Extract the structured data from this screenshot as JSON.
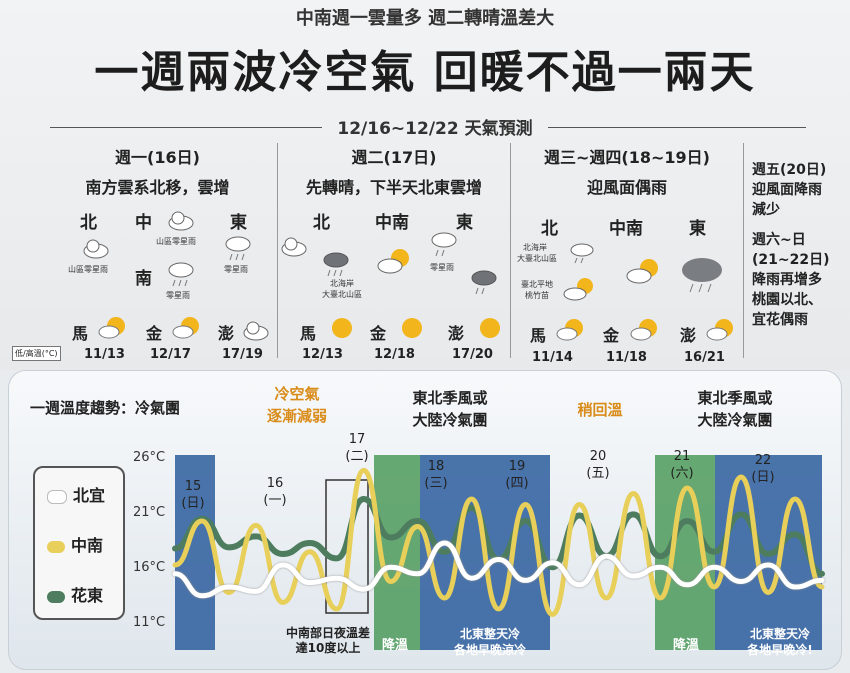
{
  "header": {
    "subtitle": "中南週一雲量多 週二轉晴溫差大",
    "title": "一週兩波冷空氣 回暖不過一兩天",
    "period": "12/16~12/22 天氣預測"
  },
  "forecast": {
    "mon": {
      "day": "週一(16日)",
      "desc": "南方雲系北移，雲增",
      "north": "北",
      "central": "中",
      "east": "東",
      "south": "南",
      "north_note": "山區零星雨",
      "central_note": "山區零星雨",
      "east_note": "零星雨",
      "south_note": "零星雨"
    },
    "tue": {
      "day": "週二(17日)",
      "desc": "先轉晴，下半天北東雲增",
      "north": "北",
      "central": "中南",
      "east": "東",
      "north_note1": "北海岸",
      "north_note2": "大臺北山區",
      "central_note": "零星雨"
    },
    "wedthu": {
      "day": "週三~週四(18~19日)",
      "desc": "迎風面偶雨",
      "north": "北",
      "central": "中南",
      "east": "東",
      "note1": "北海岸",
      "note2": "大臺北山區",
      "note3": "臺北平地",
      "note4": "桃竹苗"
    },
    "islands": [
      {
        "name": "馬",
        "date": "11/13"
      },
      {
        "name": "金",
        "date": "12/17"
      },
      {
        "name": "澎",
        "date": "17/19"
      },
      {
        "name": "馬",
        "date": "12/13"
      },
      {
        "name": "金",
        "date": "12/18"
      },
      {
        "name": "澎",
        "date": "17/20"
      },
      {
        "name": "馬",
        "date": "11/14"
      },
      {
        "name": "金",
        "date": "11/18"
      },
      {
        "name": "澎",
        "date": "16/21"
      }
    ],
    "low_high_label": "低/高溫(°C)",
    "side": {
      "fri": "週五(20日)",
      "fri1": "迎風面降雨",
      "fri2": "減少",
      "weekend": "週六~日",
      "weekend_dates": "(21~22日)",
      "we1": "降雨再增多",
      "we2": "桃園以北、",
      "we3": "宜花偶雨"
    }
  },
  "trend": {
    "heading": "一週溫度趨勢：冷氣團",
    "ann_weaken1": "冷空氣",
    "ann_weaken2": "逐漸減弱",
    "ann_ne1_1": "東北季風或",
    "ann_ne1_2": "大陸冷氣團",
    "ann_warm": "稍回溫",
    "ann_ne2_1": "東北季風或",
    "ann_ne2_2": "大陸冷氣團",
    "note_central1": "中南部日夜溫差",
    "note_central2": "達10度以上",
    "note_cool1": "降溫",
    "note_ne_cold1": "北東整天冷",
    "note_ne_cold2": "各地早晚涼冷",
    "note_cool2": "降溫",
    "note_ne_cold3": "北東整天冷",
    "note_ne_cold4": "各地早晚冷!",
    "legend": [
      "北宜",
      "中南",
      "花東"
    ]
  },
  "colors": {
    "north": "#ffffff",
    "central": "#e8cf5a",
    "east": "#4d7d5e",
    "blue_band": "#2c5d9c",
    "green_band": "#4e9a5a"
  },
  "chart_data": {
    "type": "line",
    "ylabel_ticks": [
      "26°C",
      "21°C",
      "16°C",
      "11°C"
    ],
    "ylim": [
      10,
      27
    ],
    "days": [
      {
        "date": "15",
        "weekday": "(日)"
      },
      {
        "date": "16",
        "weekday": "(一)"
      },
      {
        "date": "17",
        "weekday": "(二)"
      },
      {
        "date": "18",
        "weekday": "(三)"
      },
      {
        "date": "19",
        "weekday": "(四)"
      },
      {
        "date": "20",
        "weekday": "(五)"
      },
      {
        "date": "21",
        "weekday": "(六)"
      },
      {
        "date": "22",
        "weekday": "(日)"
      }
    ],
    "series": [
      {
        "name": "北宜",
        "values": [
          15.2,
          13.2,
          14.0,
          13.6,
          16.0,
          14.4,
          14.8,
          13.8,
          15.8,
          15.2,
          18.0,
          14.8,
          16.5,
          14.6,
          16.2,
          14.2,
          16.8,
          15.0,
          15.8,
          14.2,
          15.8,
          14.5,
          16.0,
          14.0,
          14.6
        ]
      },
      {
        "name": "中南",
        "values": [
          16.0,
          20.0,
          13.5,
          19.6,
          12.6,
          17.2,
          12.0,
          24.6,
          14.5,
          19.5,
          13.0,
          22.0,
          12.0,
          21.5,
          11.5,
          21.5,
          13.0,
          22.5,
          13.0,
          23.0,
          14.0,
          24.0,
          13.5,
          22.0,
          14.0
        ]
      },
      {
        "name": "花東",
        "values": [
          17.5,
          20.2,
          17.6,
          18.6,
          17.0,
          18.0,
          16.6,
          22.0,
          18.5,
          20.0,
          17.2,
          21.2,
          16.5,
          20.0,
          15.8,
          20.5,
          16.8,
          20.6,
          16.8,
          20.0,
          17.2,
          20.6,
          17.0,
          18.8,
          15.2
        ]
      }
    ]
  }
}
